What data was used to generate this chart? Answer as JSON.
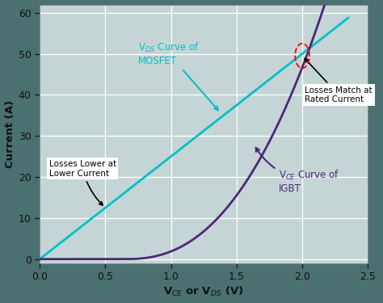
{
  "title": "",
  "xlabel": "V$_{CE}$ or V$_{DS}$ (V)",
  "ylabel": "Current (A)",
  "xlim": [
    0.0,
    2.5
  ],
  "ylim": [
    -1,
    62
  ],
  "xticks": [
    0.0,
    0.5,
    1.0,
    1.5,
    2.0,
    2.5
  ],
  "yticks": [
    0,
    10,
    20,
    30,
    40,
    50,
    60
  ],
  "background_color": "#4a7070",
  "plot_bg_color": "#c5d5d5",
  "grid_color": "#aabbbb",
  "mosfet_color": "#00c0c8",
  "igbt_color": "#4a2878",
  "intersection_x": 2.0,
  "intersection_y": 49.5,
  "tick_color": "#111111",
  "label_color": "#111111",
  "mosfet_label": "V$_{DS}$ Curve of\nMOSFET",
  "igbt_label": "V$_{CE}$ Curve of\nIGBT",
  "losses_lower_label": "Losses Lower at\nLower Current",
  "losses_match_label": "Losses Match at\nRated Current"
}
